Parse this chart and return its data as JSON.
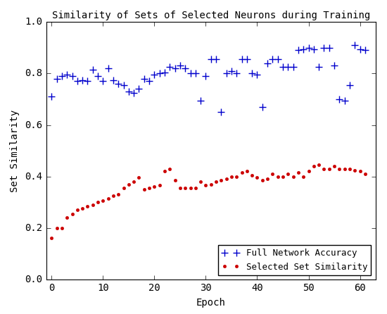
{
  "title": "Similarity of Sets of Selected Neurons during Training",
  "xlabel": "Epoch",
  "ylabel": "Set Similarity",
  "xlim": [
    -1,
    63
  ],
  "ylim": [
    0.0,
    1.0
  ],
  "yticks": [
    0.0,
    0.2,
    0.4,
    0.6,
    0.8,
    1.0
  ],
  "xticks": [
    0,
    10,
    20,
    30,
    40,
    50,
    60
  ],
  "blue_x": [
    0,
    1,
    2,
    3,
    4,
    5,
    6,
    7,
    8,
    9,
    10,
    11,
    12,
    13,
    14,
    15,
    16,
    17,
    18,
    19,
    20,
    21,
    22,
    23,
    24,
    25,
    26,
    27,
    28,
    29,
    30,
    31,
    32,
    33,
    34,
    35,
    36,
    37,
    38,
    39,
    40,
    41,
    42,
    43,
    44,
    45,
    46,
    47,
    48,
    49,
    50,
    51,
    52,
    53,
    54,
    55,
    56,
    57,
    58,
    59,
    60,
    61
  ],
  "blue_y": [
    0.71,
    0.78,
    0.79,
    0.795,
    0.79,
    0.77,
    0.775,
    0.77,
    0.815,
    0.79,
    0.77,
    0.82,
    0.775,
    0.76,
    0.755,
    0.73,
    0.725,
    0.74,
    0.78,
    0.77,
    0.795,
    0.8,
    0.805,
    0.825,
    0.82,
    0.83,
    0.82,
    0.8,
    0.8,
    0.695,
    0.79,
    0.855,
    0.855,
    0.65,
    0.8,
    0.81,
    0.8,
    0.855,
    0.855,
    0.8,
    0.795,
    0.67,
    0.84,
    0.855,
    0.855,
    0.825,
    0.825,
    0.825,
    0.89,
    0.895,
    0.9,
    0.895,
    0.825,
    0.9,
    0.9,
    0.83,
    0.7,
    0.695,
    0.755,
    0.91,
    0.895,
    0.89
  ],
  "red_x": [
    0,
    1,
    2,
    3,
    4,
    5,
    6,
    7,
    8,
    9,
    10,
    11,
    12,
    13,
    14,
    15,
    16,
    17,
    18,
    19,
    20,
    21,
    22,
    23,
    24,
    25,
    26,
    27,
    28,
    29,
    30,
    31,
    32,
    33,
    34,
    35,
    36,
    37,
    38,
    39,
    40,
    41,
    42,
    43,
    44,
    45,
    46,
    47,
    48,
    49,
    50,
    51,
    52,
    53,
    54,
    55,
    56,
    57,
    58,
    59,
    60,
    61
  ],
  "red_y": [
    0.16,
    0.2,
    0.2,
    0.24,
    0.255,
    0.27,
    0.275,
    0.285,
    0.29,
    0.3,
    0.305,
    0.315,
    0.325,
    0.33,
    0.355,
    0.37,
    0.38,
    0.395,
    0.35,
    0.355,
    0.36,
    0.365,
    0.42,
    0.43,
    0.385,
    0.355,
    0.355,
    0.355,
    0.355,
    0.38,
    0.365,
    0.37,
    0.38,
    0.385,
    0.39,
    0.4,
    0.4,
    0.415,
    0.42,
    0.405,
    0.395,
    0.385,
    0.39,
    0.41,
    0.4,
    0.4,
    0.41,
    0.4,
    0.415,
    0.4,
    0.42,
    0.44,
    0.445,
    0.43,
    0.43,
    0.44,
    0.43,
    0.43,
    0.43,
    0.425,
    0.42,
    0.41
  ],
  "legend_loc": "lower right",
  "blue_label": "Full Network Accuracy",
  "red_label": "Selected Set Similarity",
  "blue_color": "#0000CC",
  "red_color": "#CC0000",
  "bg_color": "#FFFFFF",
  "figsize": [
    5.5,
    4.46
  ],
  "dpi": 100,
  "title_fontsize": 10,
  "label_fontsize": 10,
  "tick_fontsize": 10,
  "legend_fontsize": 9
}
